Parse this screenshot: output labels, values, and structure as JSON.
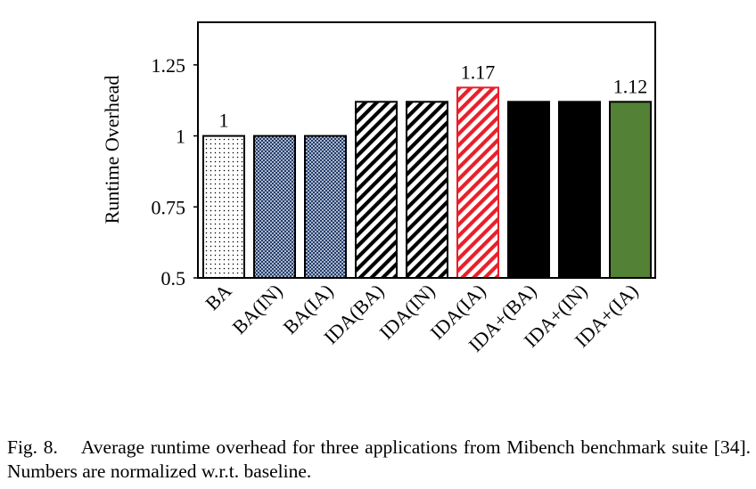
{
  "chart_data": {
    "type": "bar",
    "ylabel": "Runtime Overhead",
    "xlabel": "",
    "ylim": [
      0.5,
      1.4
    ],
    "yticks": [
      0.5,
      0.75,
      1,
      1.25
    ],
    "ytick_labels": [
      "0.5",
      "0.75",
      "1",
      "1.25"
    ],
    "grid": false,
    "categories": [
      "BA",
      "BA(IN)",
      "BA(IA)",
      "IDA(BA)",
      "IDA(IN)",
      "IDA(IA)",
      "IDA+(BA)",
      "IDA+(IN)",
      "IDA+(IA)"
    ],
    "values": [
      1.0,
      1.0,
      1.0,
      1.12,
      1.12,
      1.17,
      1.12,
      1.12,
      1.12
    ],
    "data_labels": [
      "1",
      "",
      "",
      "",
      "",
      "1.17",
      "",
      "",
      "1.12"
    ],
    "bar_styles": [
      {
        "pattern": "dots",
        "color": "#000000",
        "background": "#ffffff"
      },
      {
        "pattern": "crosshatch",
        "color": "#1f3a6b",
        "background": "#ffffff"
      },
      {
        "pattern": "crosshatch",
        "color": "#1f3a6b",
        "background": "#ffffff"
      },
      {
        "pattern": "diagonal",
        "color": "#000000",
        "background": "#ffffff"
      },
      {
        "pattern": "diagonal",
        "color": "#000000",
        "background": "#ffffff"
      },
      {
        "pattern": "diagonal",
        "color": "#e8202a",
        "background": "#ffffff"
      },
      {
        "pattern": "solid",
        "color": "#000000",
        "background": "#000000"
      },
      {
        "pattern": "solid",
        "color": "#000000",
        "background": "#000000"
      },
      {
        "pattern": "solid",
        "color": "#538135",
        "background": "#538135"
      }
    ]
  },
  "caption": {
    "label": "Fig. 8.",
    "text": "Average runtime overhead for three applications from Mibench benchmark suite [34]. Numbers are normalized w.r.t. baseline."
  }
}
